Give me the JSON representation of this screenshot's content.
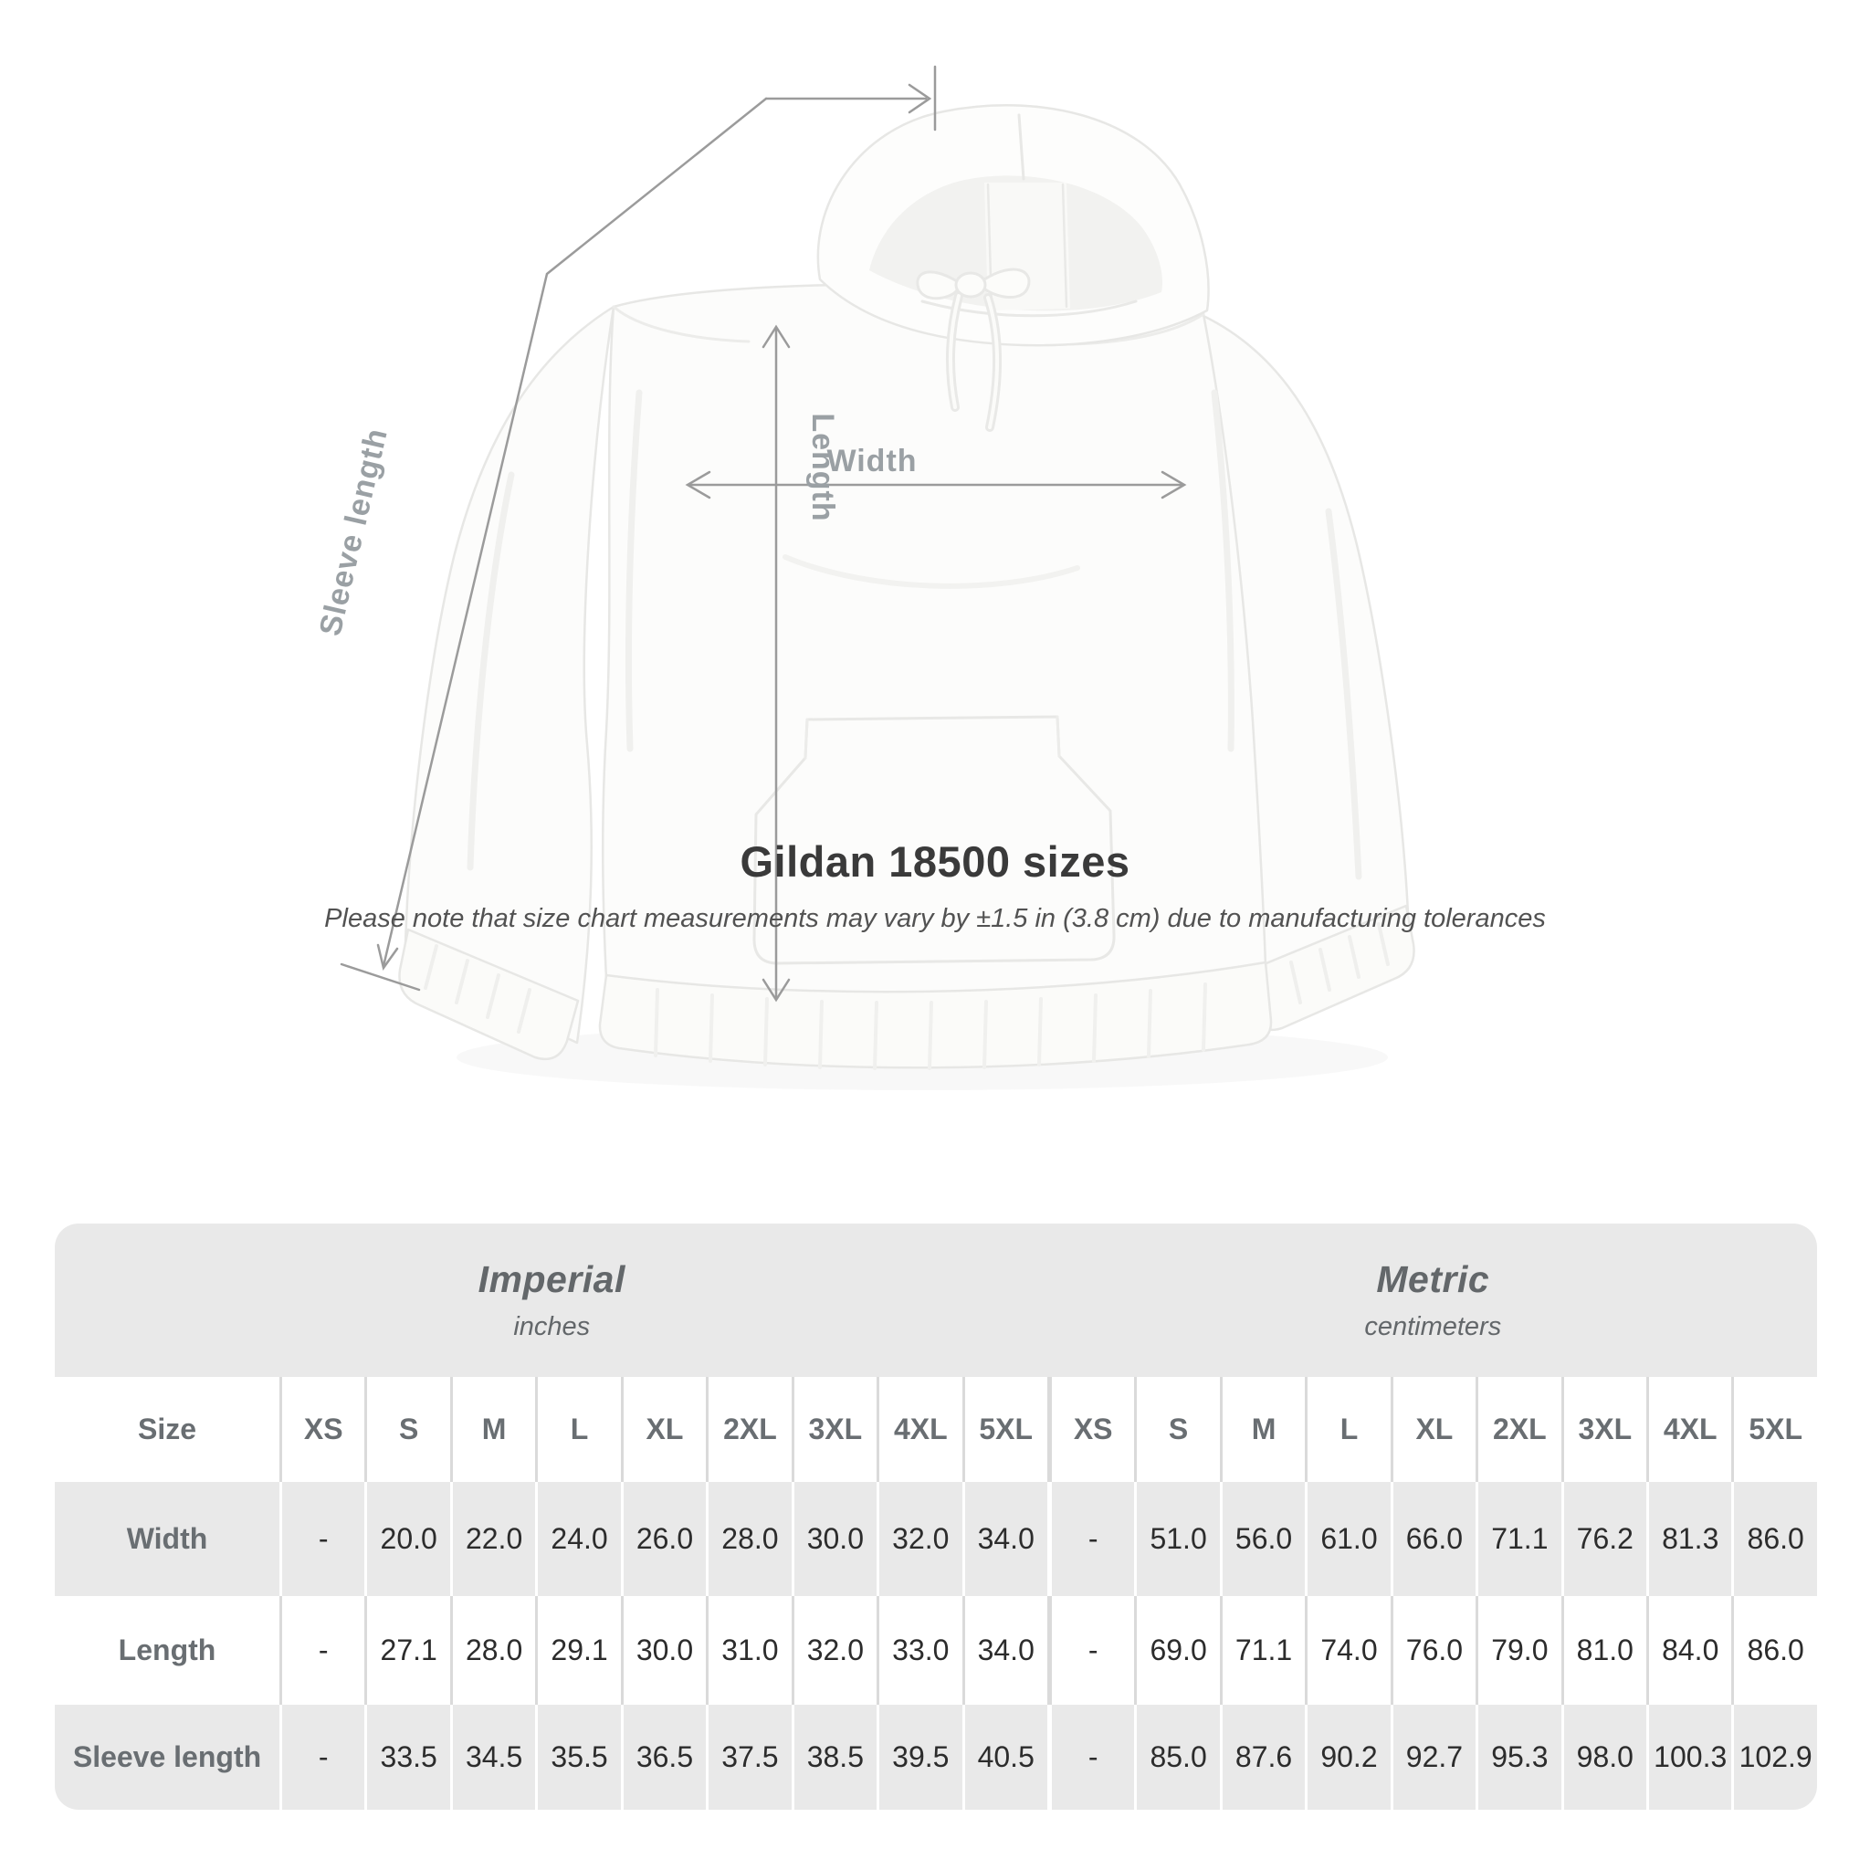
{
  "diagram": {
    "labels": {
      "sleeve": "Sleeve length",
      "length": "Length",
      "width": "Width"
    },
    "line_color": "#9b9b9b",
    "label_color": "#9aa0a4"
  },
  "title": "Gildan 18500 sizes",
  "subtitle": "Please note that size chart measurements may vary by ±1.5 in (3.8 cm) due to manufacturing tolerances",
  "size_table": {
    "groups": [
      {
        "title": "Imperial",
        "subtitle": "inches"
      },
      {
        "title": "Metric",
        "subtitle": "centimeters"
      }
    ],
    "header": {
      "label": "Size",
      "imperial": [
        "XS",
        "S",
        "M",
        "L",
        "XL",
        "2XL",
        "3XL",
        "4XL",
        "5XL"
      ],
      "metric": [
        "XS",
        "S",
        "M",
        "L",
        "XL",
        "2XL",
        "3XL",
        "4XL",
        "5XL"
      ]
    },
    "rows": [
      {
        "label": "Width",
        "imperial": [
          "-",
          "20.0",
          "22.0",
          "24.0",
          "26.0",
          "28.0",
          "30.0",
          "32.0",
          "34.0"
        ],
        "metric": [
          "-",
          "51.0",
          "56.0",
          "61.0",
          "66.0",
          "71.1",
          "76.2",
          "81.3",
          "86.0"
        ]
      },
      {
        "label": "Length",
        "imperial": [
          "-",
          "27.1",
          "28.0",
          "29.1",
          "30.0",
          "31.0",
          "32.0",
          "33.0",
          "34.0"
        ],
        "metric": [
          "-",
          "69.0",
          "71.1",
          "74.0",
          "76.0",
          "79.0",
          "81.0",
          "84.0",
          "86.0"
        ]
      },
      {
        "label": "Sleeve length",
        "imperial": [
          "-",
          "33.5",
          "34.5",
          "35.5",
          "36.5",
          "37.5",
          "38.5",
          "39.5",
          "40.5"
        ],
        "metric": [
          "-",
          "85.0",
          "87.6",
          "90.2",
          "92.7",
          "95.3",
          "98.0",
          "100.3",
          "102.9"
        ]
      }
    ]
  },
  "chart_data": {
    "type": "table",
    "title": "Gildan 18500 sizes",
    "column_groups": [
      {
        "label": "Imperial",
        "unit": "inches",
        "span": 9
      },
      {
        "label": "Metric",
        "unit": "centimeters",
        "span": 9
      }
    ],
    "columns": [
      "Size",
      "XS",
      "S",
      "M",
      "L",
      "XL",
      "2XL",
      "3XL",
      "4XL",
      "5XL",
      "XS",
      "S",
      "M",
      "L",
      "XL",
      "2XL",
      "3XL",
      "4XL",
      "5XL"
    ],
    "rows": [
      [
        "Width",
        "-",
        "20.0",
        "22.0",
        "24.0",
        "26.0",
        "28.0",
        "30.0",
        "32.0",
        "34.0",
        "-",
        "51.0",
        "56.0",
        "61.0",
        "66.0",
        "71.1",
        "76.2",
        "81.3",
        "86.0"
      ],
      [
        "Length",
        "-",
        "27.1",
        "28.0",
        "29.1",
        "30.0",
        "31.0",
        "32.0",
        "33.0",
        "34.0",
        "-",
        "69.0",
        "71.1",
        "74.0",
        "76.0",
        "79.0",
        "81.0",
        "84.0",
        "86.0"
      ],
      [
        "Sleeve length",
        "-",
        "33.5",
        "34.5",
        "35.5",
        "36.5",
        "37.5",
        "38.5",
        "39.5",
        "40.5",
        "-",
        "85.0",
        "87.6",
        "90.2",
        "92.7",
        "95.3",
        "98.0",
        "100.3",
        "102.9"
      ]
    ]
  }
}
